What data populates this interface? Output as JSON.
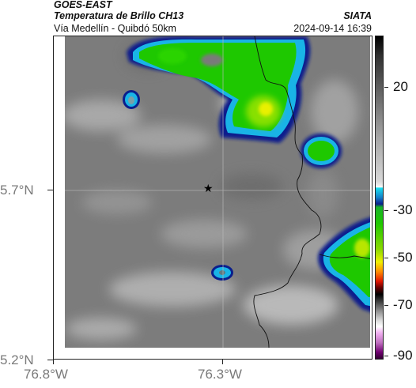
{
  "header": {
    "satellite": "GOES-EAST",
    "product": "Temperatura de Brillo CH13",
    "source": "SIATA",
    "region": "Vía Medellín - Quibdó 50km",
    "datetime": "2024-09-14 16:39"
  },
  "map": {
    "lat_labels": [
      "5.7°N",
      "5.2°N"
    ],
    "lon_labels": [
      "76.8°W",
      "76.3°W"
    ],
    "marker": "star-icon",
    "colors": {
      "cold_core": "#e8f000",
      "green": "#1ec800",
      "cyan": "#19b4e6",
      "blue": "#0a1e8c",
      "background_gray": "#7c7c7c",
      "light_gray": "#b4b4b4",
      "border_line": "#111111"
    }
  },
  "colorbar": {
    "labels": [
      "20",
      "-30",
      "-50",
      "-70",
      "-90"
    ]
  }
}
